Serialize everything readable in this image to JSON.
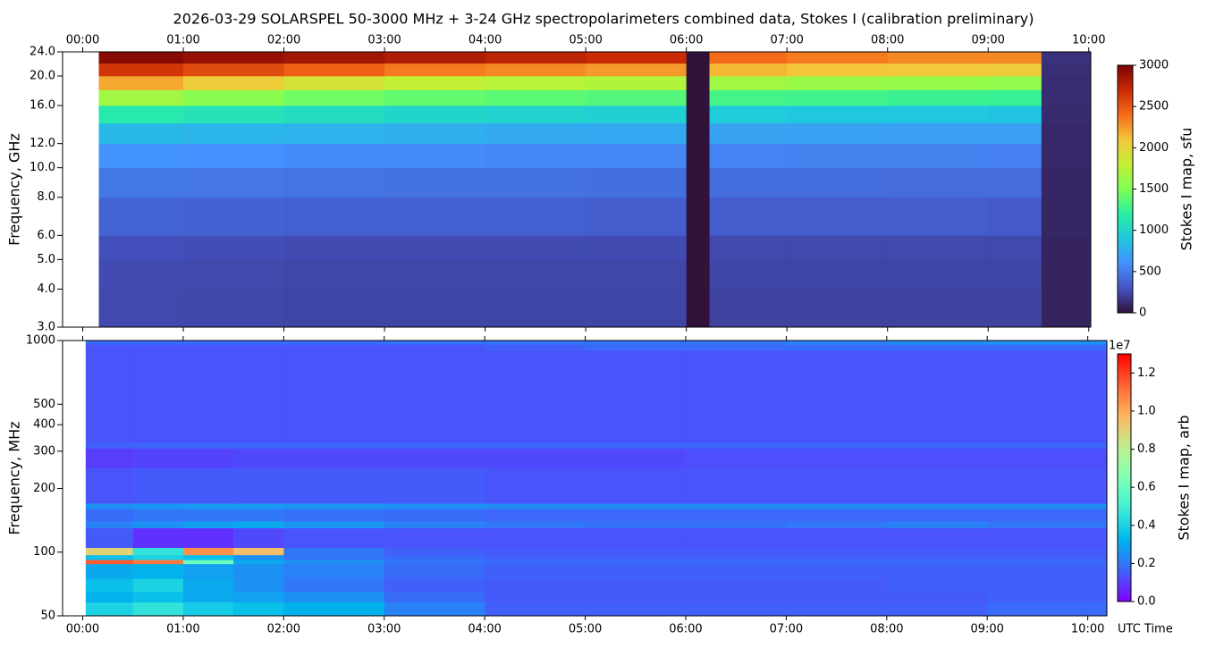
{
  "chart_data": [
    {
      "type": "heatmap",
      "title": "2026-03-29  SOLARSPEL  50-3000 MHz  +  3-24 GHz  spectropolarimeters combined data,  Stokes I  (calibration preliminary)",
      "ylabel": "Frequency, GHz",
      "yscale": "log",
      "colormap": "turbo",
      "xaxis_position": "top",
      "xlim": [
        -0.2,
        10.02
      ],
      "ylim": [
        3.0,
        24.0
      ],
      "xticks": [
        {
          "value": 0,
          "label": "00:00"
        },
        {
          "value": 1,
          "label": "01:00"
        },
        {
          "value": 2,
          "label": "02:00"
        },
        {
          "value": 3,
          "label": "03:00"
        },
        {
          "value": 4,
          "label": "04:00"
        },
        {
          "value": 5,
          "label": "05:00"
        },
        {
          "value": 6,
          "label": "06:00"
        },
        {
          "value": 7,
          "label": "07:00"
        },
        {
          "value": 8,
          "label": "08:00"
        },
        {
          "value": 9,
          "label": "09:00"
        },
        {
          "value": 10,
          "label": "10:00"
        }
      ],
      "yticks": [
        {
          "value": 3,
          "label": "3.0"
        },
        {
          "value": 4,
          "label": "4.0"
        },
        {
          "value": 5,
          "label": "5.0"
        },
        {
          "value": 6,
          "label": "6.0"
        },
        {
          "value": 8,
          "label": "8.0"
        },
        {
          "value": 10,
          "label": "10.0"
        },
        {
          "value": 12,
          "label": "12.0"
        },
        {
          "value": 16,
          "label": "16.0"
        },
        {
          "value": 20,
          "label": "20.0"
        },
        {
          "value": 24,
          "label": "24.0"
        }
      ],
      "x": [
        0.16,
        1,
        2,
        3,
        4,
        5,
        6,
        6.23,
        7,
        8,
        9,
        9.53,
        10.02
      ],
      "y": [
        3,
        4,
        5,
        6,
        8,
        10,
        12,
        14,
        16,
        18,
        20,
        22,
        24
      ],
      "z": [
        [
          250,
          240,
          230,
          230,
          230,
          230,
          0,
          220,
          220,
          220,
          220,
          80
        ],
        [
          260,
          250,
          240,
          240,
          240,
          240,
          0,
          230,
          230,
          230,
          230,
          80
        ],
        [
          280,
          270,
          260,
          260,
          260,
          260,
          0,
          250,
          250,
          250,
          250,
          80
        ],
        [
          380,
          370,
          360,
          360,
          360,
          350,
          0,
          340,
          340,
          340,
          330,
          90
        ],
        [
          480,
          470,
          460,
          450,
          450,
          440,
          0,
          430,
          430,
          420,
          420,
          90
        ],
        [
          620,
          600,
          580,
          570,
          560,
          550,
          0,
          540,
          530,
          530,
          520,
          100
        ],
        [
          820,
          800,
          780,
          760,
          740,
          730,
          0,
          700,
          690,
          680,
          680,
          100
        ],
        [
          1150,
          1100,
          1050,
          1000,
          980,
          960,
          0,
          920,
          900,
          900,
          880,
          110
        ],
        [
          1650,
          1550,
          1450,
          1400,
          1380,
          1350,
          0,
          1300,
          1280,
          1260,
          1250,
          120
        ],
        [
          2200,
          2050,
          1900,
          1800,
          1750,
          1720,
          0,
          1650,
          1620,
          1600,
          1580,
          120
        ],
        [
          2650,
          2550,
          2450,
          2350,
          2300,
          2250,
          0,
          2150,
          2100,
          2080,
          2050,
          130
        ],
        [
          2950,
          2900,
          2850,
          2800,
          2750,
          2700,
          0,
          2400,
          2350,
          2300,
          2300,
          140
        ]
      ],
      "colorbar": {
        "label": "Stokes I map, sfu",
        "lim": [
          0,
          3000
        ],
        "ticks": [
          0,
          500,
          1000,
          1500,
          2000,
          2500,
          3000
        ]
      }
    },
    {
      "type": "heatmap",
      "ylabel": "Frequency, MHz",
      "xlabel": "UTC Time",
      "yscale": "log",
      "colormap": "rainbow",
      "xaxis_position": "bottom",
      "xlim": [
        -0.2,
        10.19
      ],
      "ylim": [
        50,
        1000
      ],
      "xticks": [
        {
          "value": 0,
          "label": "00:00"
        },
        {
          "value": 1,
          "label": "01:00"
        },
        {
          "value": 2,
          "label": "02:00"
        },
        {
          "value": 3,
          "label": "03:00"
        },
        {
          "value": 4,
          "label": "04:00"
        },
        {
          "value": 5,
          "label": "05:00"
        },
        {
          "value": 6,
          "label": "06:00"
        },
        {
          "value": 7,
          "label": "07:00"
        },
        {
          "value": 8,
          "label": "08:00"
        },
        {
          "value": 9,
          "label": "09:00"
        },
        {
          "value": 10,
          "label": "10:00"
        }
      ],
      "yticks": [
        50,
        100,
        200,
        300,
        400,
        500,
        1000
      ],
      "x": [
        0.03,
        0.5,
        1,
        1.5,
        2,
        3,
        4,
        5,
        6,
        7,
        8,
        9,
        10.19
      ],
      "y": [
        50,
        58,
        65,
        75,
        88,
        92,
        97,
        105,
        130,
        140,
        160,
        170,
        250,
        310,
        330,
        900,
        960,
        1000
      ],
      "z": [
        [
          4000000,
          4500000,
          3800000,
          3500000,
          3200000,
          2200000,
          1600000,
          1600000,
          1600000,
          1600000,
          1600000,
          1800000
        ],
        [
          3200000,
          3500000,
          3000000,
          2800000,
          2500000,
          1800000,
          1500000,
          1500000,
          1500000,
          1500000,
          1500000,
          1600000
        ],
        [
          3500000,
          4000000,
          3000000,
          2500000,
          2000000,
          1600000,
          1500000,
          1500000,
          1500000,
          1500000,
          1600000,
          1600000
        ],
        [
          3000000,
          3200000,
          2800000,
          2500000,
          2200000,
          1800000,
          1600000,
          1600000,
          1600000,
          1600000,
          1600000,
          1600000
        ],
        [
          11500000,
          11000000,
          6000000,
          3000000,
          2500000,
          2000000,
          1800000,
          1800000,
          1800000,
          1800000,
          1800000,
          1800000
        ],
        [
          3500000,
          4000000,
          3500000,
          2500000,
          2000000,
          1800000,
          1600000,
          1600000,
          1600000,
          1600000,
          1600000,
          1600000
        ],
        [
          9000000,
          4500000,
          10500000,
          9500000,
          2000000,
          1600000,
          1500000,
          1500000,
          1500000,
          1500000,
          1500000,
          1500000
        ],
        [
          1500000,
          800000,
          800000,
          1200000,
          1400000,
          1400000,
          1400000,
          1400000,
          1400000,
          1400000,
          1400000,
          1400000
        ],
        [
          2200000,
          2500000,
          2800000,
          3000000,
          2600000,
          2200000,
          2000000,
          1900000,
          1900000,
          2000000,
          2200000,
          2000000
        ],
        [
          1800000,
          2000000,
          2000000,
          2000000,
          1900000,
          1800000,
          1700000,
          1700000,
          1700000,
          1700000,
          1700000,
          1700000
        ],
        [
          2500000,
          2600000,
          2700000,
          2700000,
          2600000,
          2500000,
          2400000,
          2400000,
          2400000,
          2400000,
          2400000,
          2400000
        ],
        [
          1400000,
          1500000,
          1500000,
          1500000,
          1500000,
          1500000,
          1400000,
          1400000,
          1400000,
          1400000,
          1400000,
          1400000
        ],
        [
          1000000,
          1100000,
          1100000,
          1200000,
          1200000,
          1200000,
          1200000,
          1200000,
          1300000,
          1300000,
          1300000,
          1300000
        ],
        [
          1600000,
          1700000,
          1700000,
          1700000,
          1700000,
          1700000,
          1700000,
          1700000,
          1700000,
          1700000,
          1700000,
          1700000
        ],
        [
          1400000,
          1400000,
          1400000,
          1400000,
          1400000,
          1400000,
          1400000,
          1400000,
          1400000,
          1400000,
          1400000,
          1400000
        ],
        [
          1400000,
          1400000,
          1400000,
          1400000,
          1400000,
          1400000,
          1600000,
          1800000,
          1800000,
          1800000,
          1800000,
          1800000
        ],
        [
          1800000,
          1800000,
          1800000,
          1800000,
          1800000,
          1900000,
          1900000,
          1900000,
          2000000,
          2200000,
          2400000,
          2500000
        ]
      ],
      "colorbar": {
        "label": "Stokes I map, arb",
        "lim": [
          0,
          13000000
        ],
        "offset_label": "1e7",
        "ticks": [
          {
            "value": 0,
            "label": "0.0"
          },
          {
            "value": 2000000,
            "label": "0.2"
          },
          {
            "value": 4000000,
            "label": "0.4"
          },
          {
            "value": 6000000,
            "label": "0.6"
          },
          {
            "value": 8000000,
            "label": "0.8"
          },
          {
            "value": 10000000,
            "label": "1.0"
          },
          {
            "value": 12000000,
            "label": "1.2"
          }
        ]
      }
    }
  ]
}
